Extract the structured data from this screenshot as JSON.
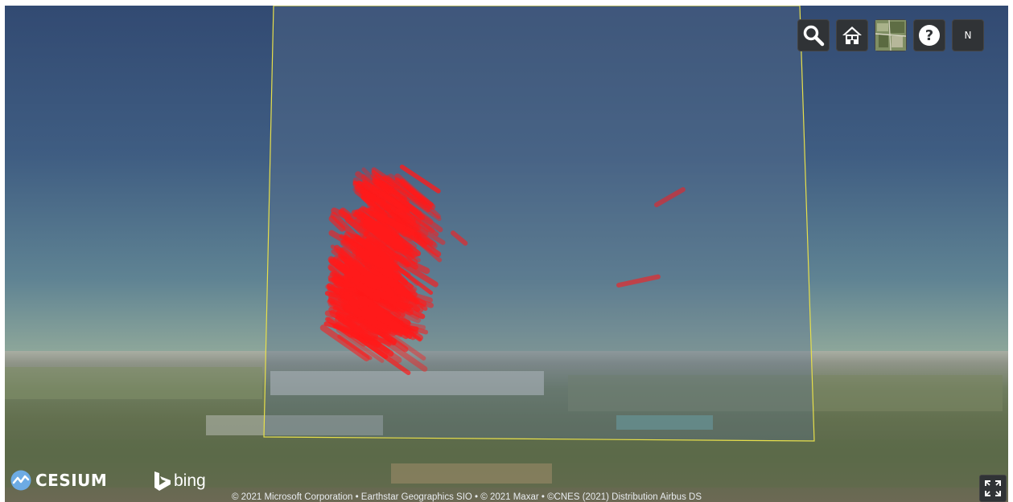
{
  "toolbar": {
    "search_icon": "search-icon",
    "home_icon": "home-icon",
    "layer_icon": "base-layer-picker-icon",
    "help_icon": "help-icon",
    "help_glyph": "?",
    "navigation_label": "N"
  },
  "branding": {
    "cesium_label": "CESIUM",
    "bing_label": "bing"
  },
  "credits": {
    "text": "© 2021 Microsoft Corporation • Earthstar Geographics SIO • © 2021 Maxar • ©CNES (2021) Distribution Airbus DS"
  },
  "scene": {
    "sky_color": "#3f5d82",
    "volume_outline_color": "#e8e04a",
    "point_color": "#ff1a1a"
  }
}
